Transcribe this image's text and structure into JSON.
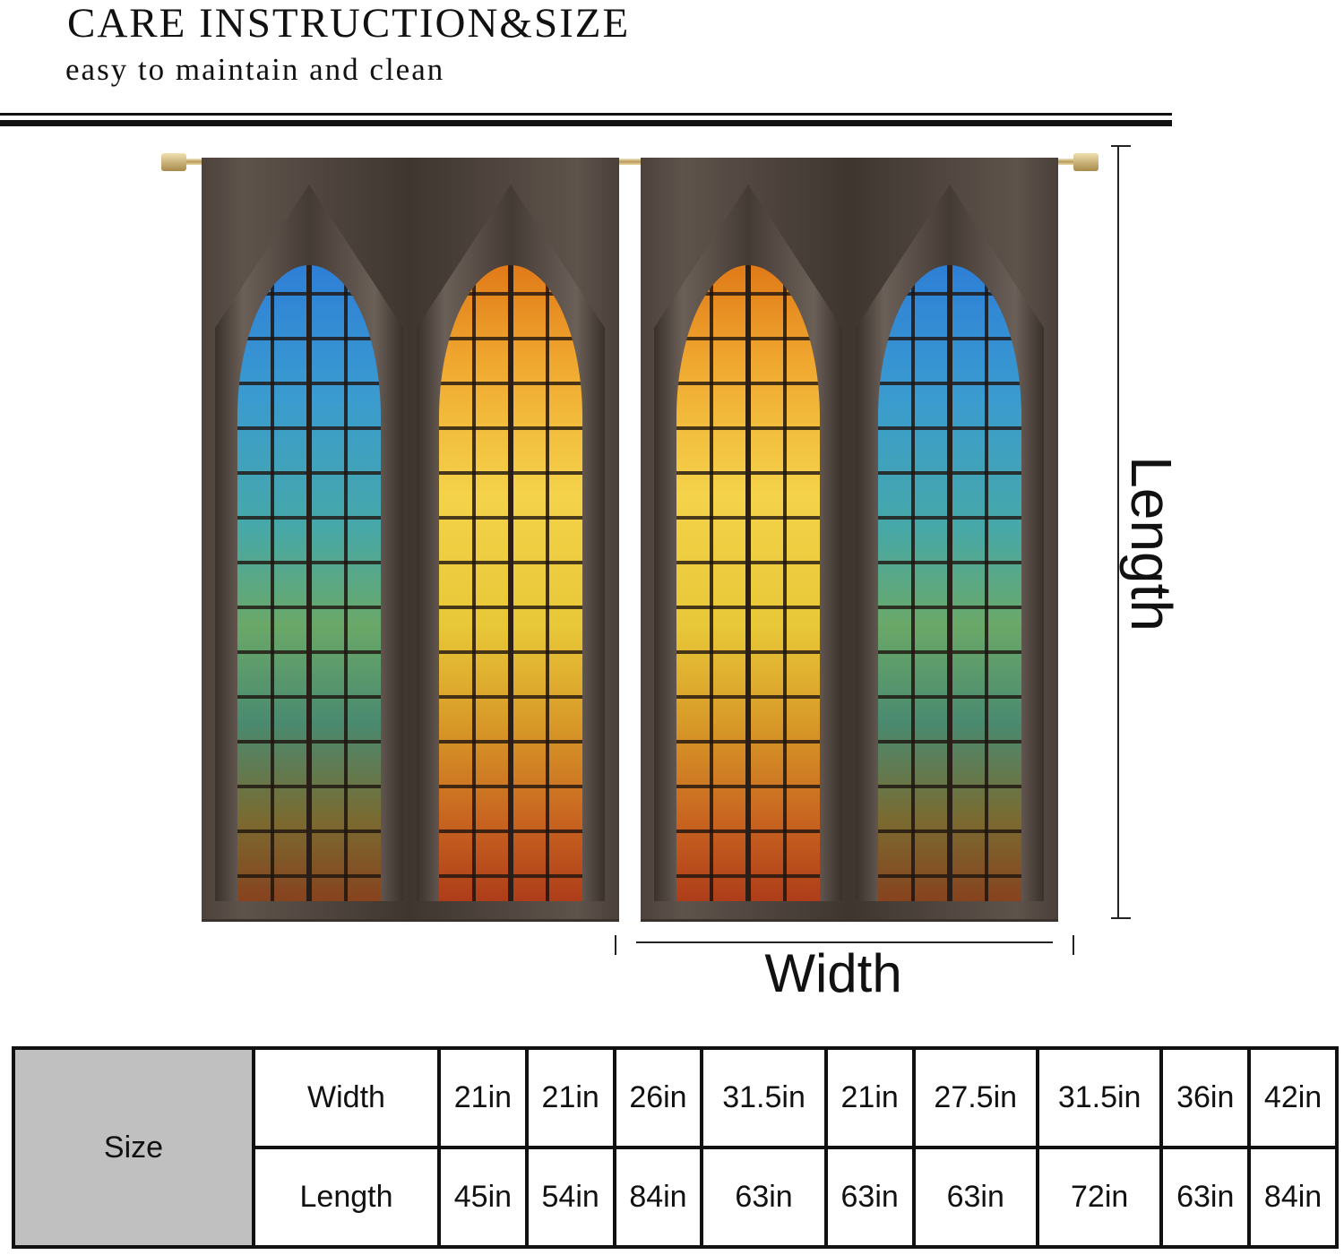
{
  "header": {
    "title": "CARE INSTRUCTION&SIZE",
    "subtitle": "easy to maintain and clean"
  },
  "diagram": {
    "length_label": "Length",
    "width_label": "Width",
    "panel_colors": [
      [
        "blue",
        "amber"
      ],
      [
        "amber",
        "blue"
      ]
    ],
    "colors": {
      "blue": "#2e7fd6",
      "amber": "#f0a830",
      "frame": "#4d433c"
    }
  },
  "size_table": {
    "header": "Size",
    "rows": [
      {
        "label": "Width",
        "values": [
          "21in",
          "21in",
          "26in",
          "31.5in",
          "21in",
          "27.5in",
          "31.5in",
          "36in",
          "42in"
        ]
      },
      {
        "label": "Length",
        "values": [
          "45in",
          "54in",
          "84in",
          "63in",
          "63in",
          "63in",
          "72in",
          "63in",
          "84in"
        ]
      }
    ]
  }
}
